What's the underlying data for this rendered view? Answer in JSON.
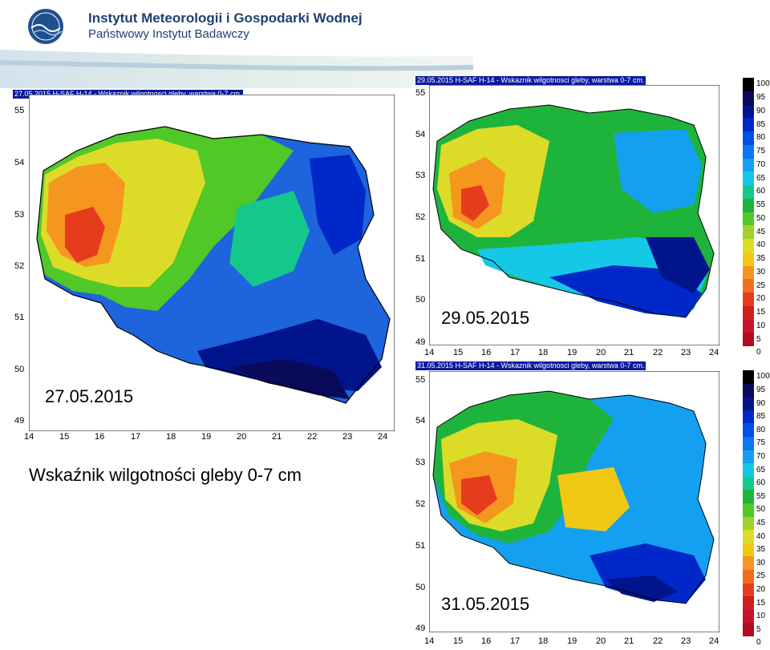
{
  "header": {
    "institute_name": "Instytut Meteorologii i Gospodarki Wodnej",
    "institute_sub": "Państwowy Instytut Badawczy",
    "logo_text": "IMGW"
  },
  "caption": "Wskaźnik wilgotności gleby 0-7 cm",
  "maps": [
    {
      "title": "27.05.2015 H-SAF H-14 - Wskaznik wilgotnosci gleby, warstwa 0-7 cm.",
      "date_label": "27.05.2015",
      "x_ticks": [
        "14",
        "15",
        "16",
        "17",
        "18",
        "19",
        "20",
        "21",
        "22",
        "23",
        "24"
      ],
      "y_ticks": [
        "55",
        "54",
        "53",
        "52",
        "51",
        "50",
        "49"
      ]
    },
    {
      "title": "29.05.2015 H-SAF H-14 - Wskaznik wilgotnosci gleby, warstwa 0-7 cm.",
      "date_label": "29.05.2015",
      "x_ticks": [
        "14",
        "15",
        "16",
        "17",
        "18",
        "19",
        "20",
        "21",
        "22",
        "23",
        "24"
      ],
      "y_ticks": [
        "55",
        "54",
        "53",
        "52",
        "51",
        "50",
        "49"
      ]
    },
    {
      "title": "31.05.2015 H-SAF H-14 - Wskaznik wilgotnosci gleby, warstwa 0-7 cm.",
      "date_label": "31.05.2015",
      "x_ticks": [
        "14",
        "15",
        "16",
        "17",
        "18",
        "19",
        "20",
        "21",
        "22",
        "23",
        "24"
      ],
      "y_ticks": [
        "55",
        "54",
        "53",
        "52",
        "51",
        "50",
        "49"
      ]
    }
  ],
  "legend": {
    "labels": [
      "100",
      "95",
      "90",
      "85",
      "80",
      "75",
      "70",
      "65",
      "60",
      "55",
      "50",
      "45",
      "40",
      "35",
      "30",
      "25",
      "20",
      "15",
      "10",
      "5",
      "0"
    ],
    "colors": [
      "#000000",
      "#0a0a5a",
      "#00148c",
      "#0028c8",
      "#0050e6",
      "#0a78f0",
      "#14a0f0",
      "#14c8e6",
      "#14c88c",
      "#1eb43c",
      "#50c828",
      "#a0d228",
      "#dcdc28",
      "#f0c814",
      "#f5961e",
      "#f06e1e",
      "#e63c1e",
      "#d21e1e",
      "#c81428",
      "#b40a1e"
    ]
  }
}
